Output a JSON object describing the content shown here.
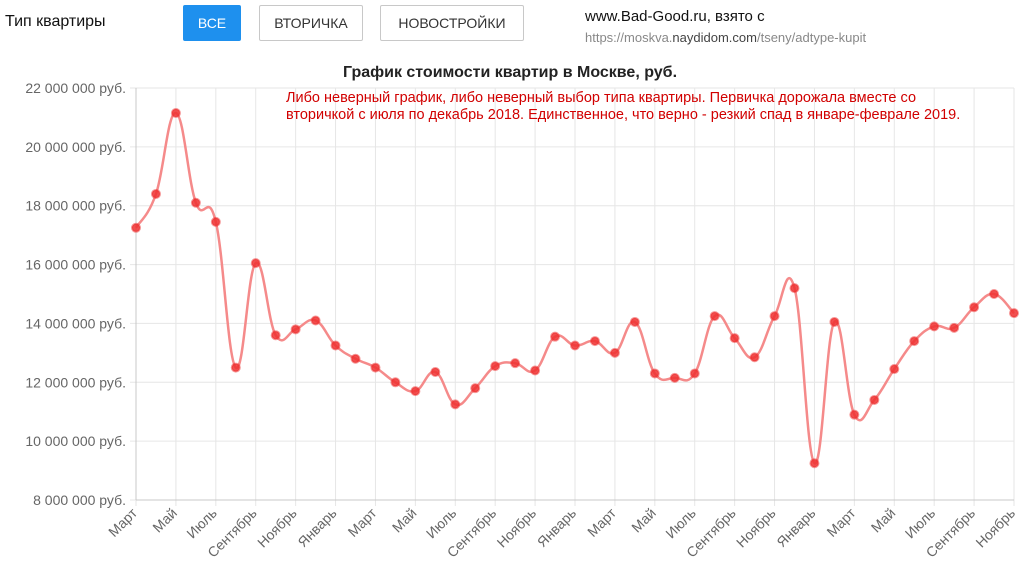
{
  "filter": {
    "label": "Тип квартиры",
    "buttons": [
      {
        "label": "Все",
        "active": true
      },
      {
        "label": "Вторичка",
        "active": false
      },
      {
        "label": "Новостройки",
        "active": false
      }
    ]
  },
  "source": {
    "title": "www.Bad-Good.ru, взято с",
    "url_prefix": "https://moskva.",
    "url_host": "naydidom.com",
    "url_path": "/tseny/adtype-kupit"
  },
  "annotation": "Либо неверный график, либо неверный выбор типа квартиры. Первичка дорожала вместе со вторичкой с июля по декабрь 2018. Единственное, что верно - резкий спад в январе-феврале 2019.",
  "colors": {
    "line": "#f58a8a",
    "point": "#ee3030",
    "grid": "#e6e6e6",
    "accent": "#1e90ee"
  },
  "chart_data": {
    "type": "line",
    "title": "График стоимости квартир в Москве, руб.",
    "xlabel": "",
    "ylabel": "",
    "ylim": [
      8000000,
      22000000
    ],
    "y_ticks": [
      8000000,
      10000000,
      12000000,
      14000000,
      16000000,
      18000000,
      20000000,
      22000000
    ],
    "y_tick_labels": [
      "8 000 000 руб.",
      "10 000 000 руб.",
      "12 000 000 руб.",
      "14 000 000 руб.",
      "16 000 000 руб.",
      "18 000 000 руб.",
      "20 000 000 руб.",
      "22 000 000 руб."
    ],
    "x_tick_labels": [
      "Март",
      "Май",
      "Июль",
      "Сентябрь",
      "Ноябрь",
      "Январь",
      "Март",
      "Май",
      "Июль",
      "Сентябрь",
      "Ноябрь",
      "Январь",
      "Март",
      "Май",
      "Июль",
      "Сентябрь",
      "Ноябрь",
      "Январь",
      "Март",
      "Май",
      "Июль",
      "Сентябрь",
      "Ноябрь"
    ],
    "grid": true,
    "legend": "none",
    "series": [
      {
        "values": [
          17250000,
          18400000,
          21150000,
          18100000,
          17450000,
          12500000,
          16050000,
          13600000,
          13800000,
          14100000,
          13250000,
          12800000,
          12500000,
          12000000,
          11700000,
          12350000,
          11250000,
          11800000,
          12550000,
          12650000,
          12400000,
          13550000,
          13250000,
          13400000,
          13000000,
          14050000,
          12300000,
          12150000,
          12300000,
          14250000,
          13500000,
          12850000,
          14250000,
          15200000,
          9250000,
          14050000,
          10900000,
          11400000,
          12450000,
          13400000,
          13900000,
          13850000,
          14550000,
          15000000,
          14350000
        ]
      }
    ]
  }
}
